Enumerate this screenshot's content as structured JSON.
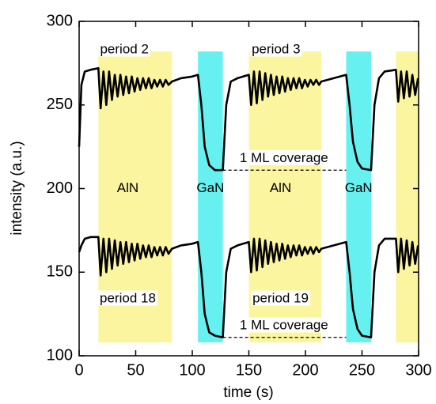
{
  "chart_data": {
    "type": "line",
    "xlabel": "time (s)",
    "ylabel": "intensity (a.u.)",
    "xlim": [
      0,
      300
    ],
    "ylim": [
      100,
      300
    ],
    "xticks": [
      0,
      50,
      100,
      150,
      200,
      250,
      300
    ],
    "yticks": [
      100,
      150,
      200,
      250,
      300
    ],
    "x": [
      0,
      2,
      5,
      10,
      17,
      19,
      21.5,
      24,
      26.5,
      29,
      31.5,
      34,
      36.5,
      39,
      41.5,
      44,
      46.5,
      49,
      51.5,
      54,
      56.5,
      59,
      61.5,
      64,
      66.5,
      69,
      71.5,
      74,
      76.5,
      79,
      82,
      90,
      100,
      105,
      108,
      111,
      115,
      120,
      127,
      130,
      134,
      140,
      150,
      152,
      154.5,
      157,
      159.5,
      162,
      164.5,
      167,
      169.5,
      172,
      174.5,
      177,
      179.5,
      182,
      184.5,
      187,
      189.5,
      192,
      194.5,
      197,
      199.5,
      202,
      204.5,
      207,
      209.5,
      212,
      214,
      225,
      236,
      239,
      242,
      246,
      250,
      258,
      261,
      265,
      270,
      280,
      282,
      284.5,
      287,
      289.5,
      292,
      294.5,
      297,
      299.5
    ],
    "series": [
      {
        "color": "#000000",
        "values": [
          225,
          262,
          270,
          271,
          272,
          248,
          270,
          250,
          270,
          253,
          268,
          255,
          268,
          256,
          267,
          257,
          267,
          258,
          266,
          259,
          266,
          260,
          266,
          260,
          265,
          261,
          265,
          261,
          265,
          262,
          264,
          266,
          267,
          268,
          250,
          225,
          214,
          211,
          211,
          250,
          264,
          266,
          268,
          250,
          270,
          251,
          270,
          253,
          269,
          255,
          268,
          256,
          267,
          257,
          267,
          258,
          266,
          259,
          266,
          260,
          266,
          260,
          265,
          261,
          265,
          262,
          265,
          262,
          264,
          266,
          268,
          250,
          228,
          216,
          212,
          211,
          250,
          266,
          270,
          271,
          252,
          270,
          254,
          270,
          255,
          268,
          256,
          266
        ]
      },
      {
        "color": "#000000",
        "values": [
          162,
          166,
          170,
          171,
          171,
          148,
          170,
          150,
          170,
          152,
          169,
          154,
          168,
          155,
          168,
          156,
          167,
          157,
          167,
          158,
          166,
          159,
          166,
          159,
          165,
          160,
          165,
          160,
          165,
          161,
          164,
          166,
          167,
          168,
          150,
          125,
          114,
          112,
          111,
          150,
          164,
          166,
          168,
          150,
          170,
          151,
          170,
          153,
          169,
          155,
          168,
          156,
          167,
          157,
          167,
          158,
          166,
          159,
          166,
          160,
          166,
          160,
          165,
          161,
          165,
          161,
          165,
          162,
          164,
          166,
          168,
          150,
          128,
          116,
          112,
          111,
          150,
          166,
          170,
          170,
          150,
          170,
          152,
          169,
          154,
          168,
          155,
          166
        ]
      }
    ],
    "regions": [
      {
        "x0": 17,
        "x1": 82,
        "y0": 108,
        "y1": 282,
        "color": "#fbf5a0"
      },
      {
        "x0": 105,
        "x1": 127,
        "y0": 108,
        "y1": 282,
        "color": "#66f0f0"
      },
      {
        "x0": 150,
        "x1": 214,
        "y0": 108,
        "y1": 282,
        "color": "#fbf5a0"
      },
      {
        "x0": 236,
        "x1": 258,
        "y0": 108,
        "y1": 282,
        "color": "#66f0f0"
      },
      {
        "x0": 280,
        "x1": 300,
        "y0": 108,
        "y1": 282,
        "color": "#fbf5a0"
      }
    ],
    "reference_lines": [
      {
        "x0": 127,
        "x1": 236,
        "y": 211
      },
      {
        "x0": 127,
        "x1": 236,
        "y": 111
      }
    ],
    "annotations": [
      {
        "text": "period 2",
        "x": 40,
        "y": 283
      },
      {
        "text": "period 3",
        "x": 174,
        "y": 283
      },
      {
        "text": "AlN",
        "x": 43,
        "y": 200
      },
      {
        "text": "GaN",
        "x": 116,
        "y": 200
      },
      {
        "text": "AlN",
        "x": 178,
        "y": 200
      },
      {
        "text": "GaN",
        "x": 247,
        "y": 200
      },
      {
        "text": "1 ML coverage",
        "x": 181,
        "y": 218
      },
      {
        "text": "period 18",
        "x": 43,
        "y": 134
      },
      {
        "text": "period 19",
        "x": 178,
        "y": 134
      },
      {
        "text": "1 ML coverage",
        "x": 181,
        "y": 118
      }
    ]
  }
}
